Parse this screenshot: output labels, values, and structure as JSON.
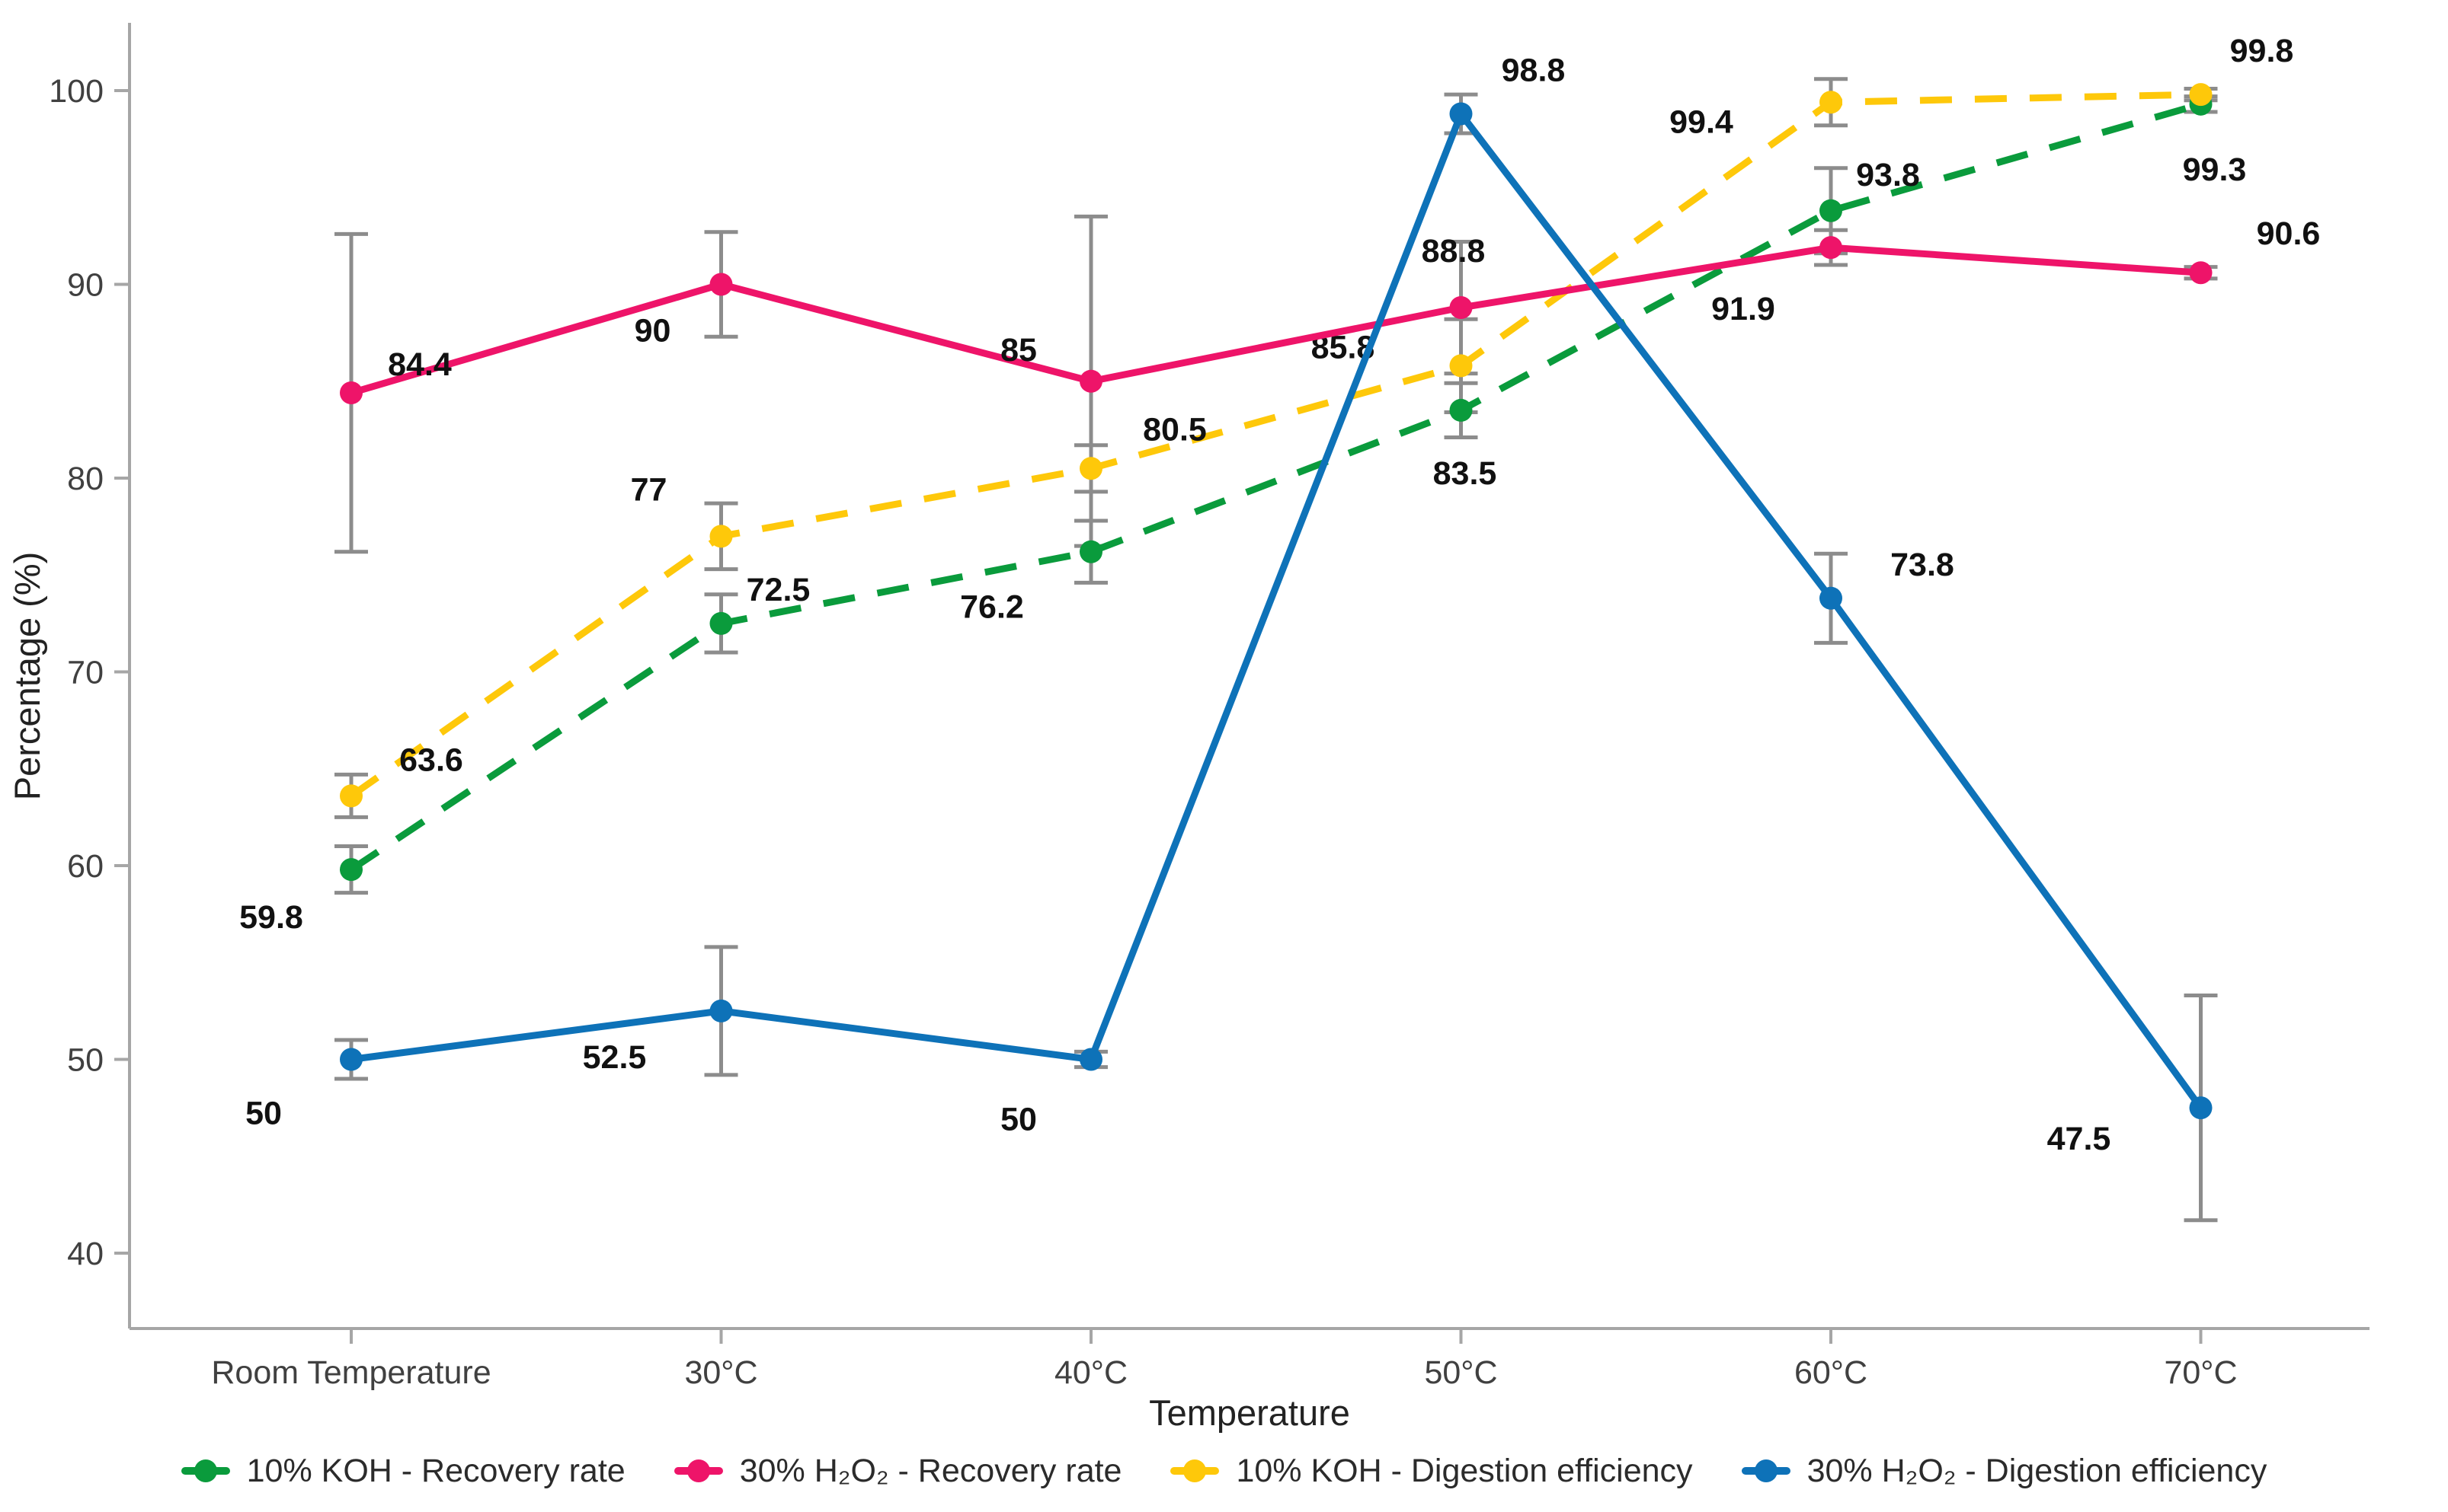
{
  "chart_data": {
    "type": "line",
    "title": "",
    "xlabel": "Temperature",
    "ylabel": "Percentage (%)",
    "categories": [
      "Room Temperature",
      "30°C",
      "40°C",
      "50°C",
      "60°C",
      "70°C"
    ],
    "y_ticks": [
      40,
      50,
      60,
      70,
      80,
      90,
      100
    ],
    "ylim": [
      36,
      104
    ],
    "grid": false,
    "legend_position": "bottom",
    "axis_color": "#a6a6a6",
    "error_bar_color": "#8c8c8c",
    "series": [
      {
        "name": "10% KOH - Recovery rate",
        "color": "#0a9b3c",
        "line_style": "dashed",
        "values": [
          59.8,
          72.5,
          76.2,
          83.5,
          93.8,
          99.3
        ],
        "errors": [
          1.2,
          1.5,
          1.6,
          1.4,
          2.2,
          0.4
        ]
      },
      {
        "name": "30% H₂O₂ - Recovery rate",
        "color": "#ee1469",
        "line_style": "solid",
        "values": [
          84.4,
          90,
          85,
          88.8,
          91.9,
          90.6
        ],
        "errors": [
          8.2,
          2.7,
          8.5,
          3.4,
          0.9,
          0.3
        ]
      },
      {
        "name": "10% KOH - Digestion efficiency",
        "color": "#fec80a",
        "line_style": "dashed",
        "values": [
          63.6,
          77,
          80.5,
          85.8,
          99.4,
          99.8
        ],
        "errors": [
          1.1,
          1.7,
          1.2,
          2.4,
          1.2,
          0.3
        ]
      },
      {
        "name": "30% H₂O₂ - Digestion efficiency",
        "color": "#0e72b8",
        "line_style": "solid",
        "values": [
          50,
          52.5,
          50,
          98.8,
          73.8,
          47.5
        ],
        "errors": [
          1.0,
          3.3,
          0.4,
          1.0,
          2.3,
          5.8
        ]
      }
    ]
  }
}
